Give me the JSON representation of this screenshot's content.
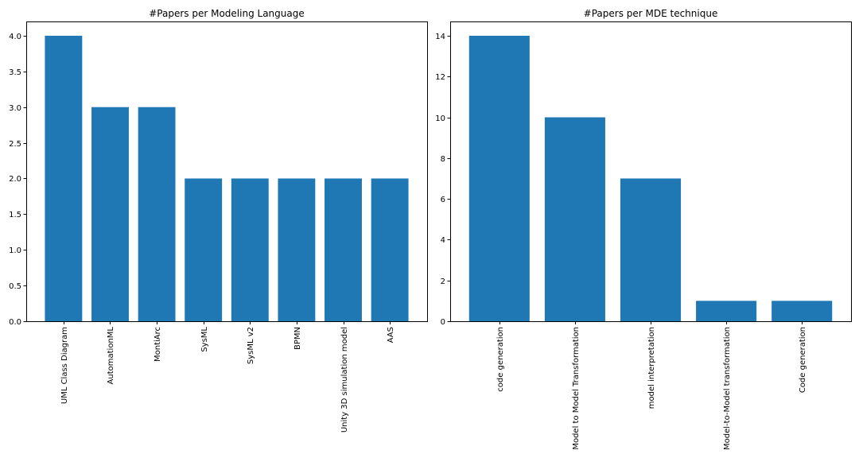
{
  "chart_data": [
    {
      "type": "bar",
      "title": "#Papers per Modeling Language",
      "xlabel": "",
      "ylabel": "",
      "categories": [
        "UML Class Diagram",
        "AutomationML",
        "MontiArc",
        "SysML",
        "SysML v2",
        "BPMN",
        "Unity 3D simulation model",
        "AAS"
      ],
      "values": [
        4,
        3,
        3,
        2,
        2,
        2,
        2,
        2
      ],
      "ylim": [
        0,
        4.2
      ],
      "yticks": [
        0.0,
        0.5,
        1.0,
        1.5,
        2.0,
        2.5,
        3.0,
        3.5,
        4.0
      ],
      "ytick_labels": [
        "0.0",
        "0.5",
        "1.0",
        "1.5",
        "2.0",
        "2.5",
        "3.0",
        "3.5",
        "4.0"
      ],
      "grid": false,
      "bar_color": "#1f77b4"
    },
    {
      "type": "bar",
      "title": "#Papers per MDE technique",
      "xlabel": "",
      "ylabel": "",
      "categories": [
        "code generation",
        "Model to Model Transformation",
        "model interpretation",
        "Model-to-Model transformation",
        "Code generation"
      ],
      "values": [
        14,
        10,
        7,
        1,
        1
      ],
      "ylim": [
        0,
        14.7
      ],
      "yticks": [
        0,
        2,
        4,
        6,
        8,
        10,
        12,
        14
      ],
      "ytick_labels": [
        "0",
        "2",
        "4",
        "6",
        "8",
        "10",
        "12",
        "14"
      ],
      "grid": false,
      "bar_color": "#1f77b4"
    }
  ]
}
